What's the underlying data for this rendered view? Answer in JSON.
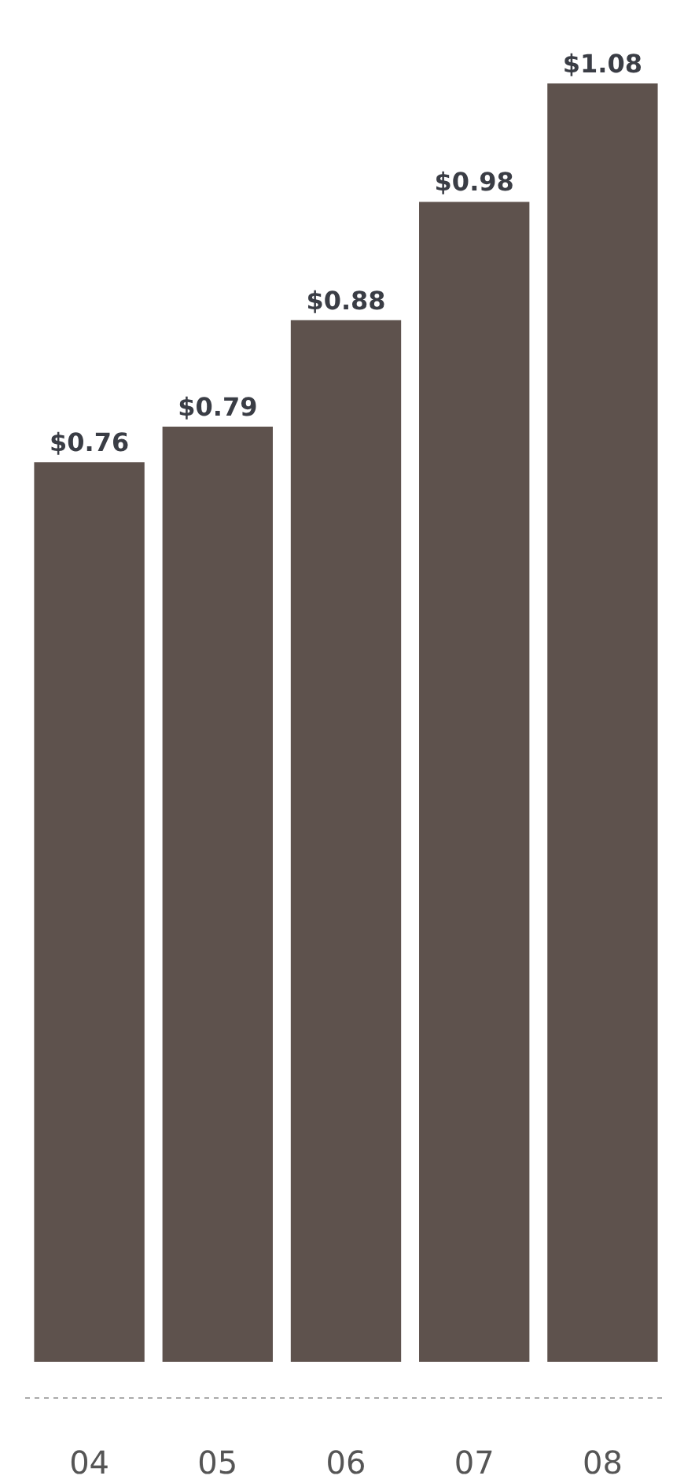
{
  "chart_data": {
    "type": "bar",
    "categories": [
      "04",
      "05",
      "06",
      "07",
      "08"
    ],
    "values": [
      0.76,
      0.79,
      0.88,
      0.98,
      1.08
    ],
    "value_labels": [
      "$0.76",
      "$0.79",
      "$0.88",
      "$0.98",
      "$1.08"
    ],
    "color": "#5e524d",
    "legend": false
  }
}
